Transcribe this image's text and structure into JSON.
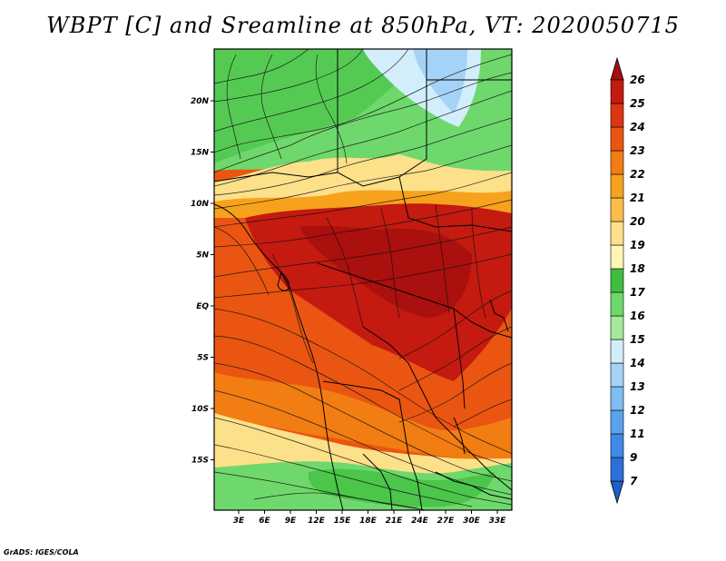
{
  "title": "WBPT [C] and Sreamline at 850hPa, VT: 2020050715",
  "credit": "GrADS: IGES/COLA",
  "map": {
    "lon_ticks": [
      "3E",
      "6E",
      "9E",
      "12E",
      "15E",
      "18E",
      "21E",
      "24E",
      "27E",
      "30E",
      "33E"
    ],
    "lat_ticks": [
      "20N",
      "15N",
      "10N",
      "5N",
      "EQ",
      "5S",
      "10S",
      "15S"
    ]
  },
  "colorbar": {
    "labels": [
      "7",
      "9",
      "11",
      "12",
      "13",
      "14",
      "15",
      "16",
      "17",
      "18",
      "19",
      "20",
      "21",
      "22",
      "23",
      "24",
      "25",
      "26"
    ],
    "colors": [
      "#2c6fd6",
      "#3f8ae6",
      "#5aa2ee",
      "#7fbcf3",
      "#a5d3f7",
      "#d2eefb",
      "#a6e89c",
      "#6fd86c",
      "#3fbf3f",
      "#fff5b5",
      "#fde08a",
      "#fbbd4a",
      "#f7a21c",
      "#f27d12",
      "#ea5512",
      "#dd3414",
      "#c41a10"
    ],
    "under_color": "#1d5fcc",
    "over_color": "#a40e0c"
  }
}
